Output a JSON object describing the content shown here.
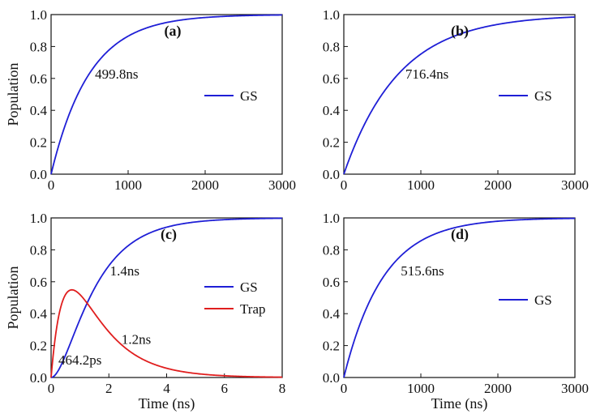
{
  "chart_data": [
    {
      "id": "a",
      "type": "line",
      "panel_label": "(a)",
      "xlabel": "",
      "ylabel": "Population",
      "xlim": [
        0,
        3000
      ],
      "ylim": [
        0,
        1.0
      ],
      "xticks": [
        "0",
        "1000",
        "2000",
        "3000"
      ],
      "yticks": [
        "0.0",
        "0.2",
        "0.4",
        "0.6",
        "0.8",
        "1.0"
      ],
      "legend_position": "center-right",
      "series": [
        {
          "name": "GS",
          "color": "#1f1fd6",
          "model": "rise",
          "tau": 499.8
        }
      ],
      "annotations": [
        {
          "text": "499.8ns",
          "x": 850,
          "y": 0.6
        }
      ]
    },
    {
      "id": "b",
      "type": "line",
      "panel_label": "(b)",
      "xlabel": "",
      "ylabel": "",
      "xlim": [
        0,
        3000
      ],
      "ylim": [
        0,
        1.0
      ],
      "xticks": [
        "0",
        "1000",
        "2000",
        "3000"
      ],
      "yticks": [
        "0.0",
        "0.2",
        "0.4",
        "0.6",
        "0.8",
        "1.0"
      ],
      "legend_position": "center-right",
      "series": [
        {
          "name": "GS",
          "color": "#1f1fd6",
          "model": "rise",
          "tau": 716.4
        }
      ],
      "annotations": [
        {
          "text": "716.4ns",
          "x": 1080,
          "y": 0.6
        }
      ]
    },
    {
      "id": "c",
      "type": "line",
      "panel_label": "(c)",
      "xlabel": "Time (ns)",
      "ylabel": "Population",
      "xlim": [
        0,
        8
      ],
      "ylim": [
        0,
        1.0
      ],
      "xticks": [
        "0",
        "2",
        "4",
        "6",
        "8"
      ],
      "yticks": [
        "0.0",
        "0.2",
        "0.4",
        "0.6",
        "0.8",
        "1.0"
      ],
      "legend_position": "center-right",
      "series": [
        {
          "name": "GS",
          "color": "#1f1fd6",
          "model": "sequential_final",
          "tau1": 0.4642,
          "tau2": 1.2
        },
        {
          "name": "Trap",
          "color": "#e01e1e",
          "model": "sequential_intermediate",
          "tau1": 0.4642,
          "tau2": 1.2
        }
      ],
      "annotations": [
        {
          "text": "1.4ns",
          "x": 2.55,
          "y": 0.64
        },
        {
          "text": "1.2ns",
          "x": 2.95,
          "y": 0.21
        },
        {
          "text": "464.2ps",
          "x": 1.0,
          "y": 0.08
        }
      ]
    },
    {
      "id": "d",
      "type": "line",
      "panel_label": "(d)",
      "xlabel": "Time (ns)",
      "ylabel": "",
      "xlim": [
        0,
        3000
      ],
      "ylim": [
        0,
        1.0
      ],
      "xticks": [
        "0",
        "1000",
        "2000",
        "3000"
      ],
      "yticks": [
        "0.0",
        "0.2",
        "0.4",
        "0.6",
        "0.8",
        "1.0"
      ],
      "legend_position": "center-right",
      "series": [
        {
          "name": "GS",
          "color": "#1f1fd6",
          "model": "rise",
          "tau": 515.6
        }
      ],
      "annotations": [
        {
          "text": "515.6ns",
          "x": 1020,
          "y": 0.64
        }
      ]
    }
  ]
}
